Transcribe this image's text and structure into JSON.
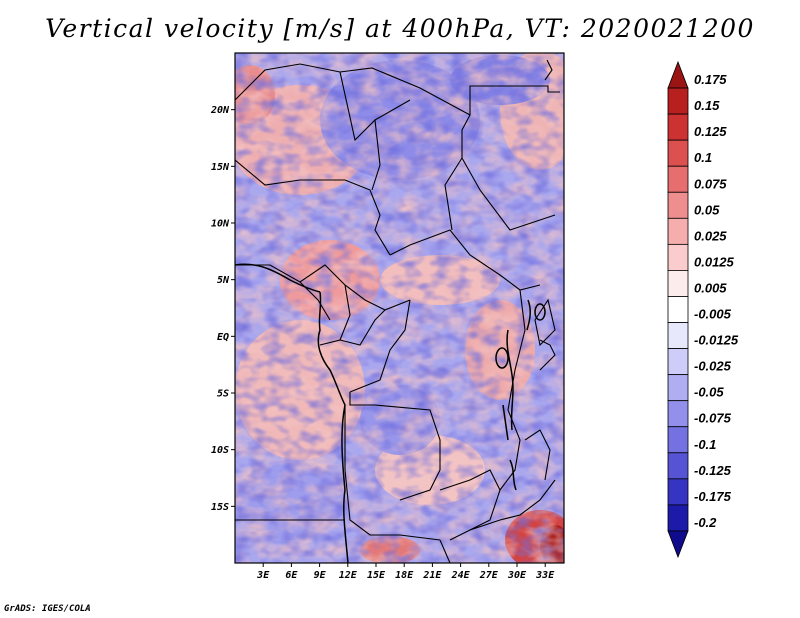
{
  "title": "Vertical velocity [m/s] at 400hPa, VT: 2020021200",
  "credit": "GrADS: IGES/COLA",
  "map": {
    "region": "Central Africa",
    "lat_labels": [
      "20N",
      "15N",
      "10N",
      "5N",
      "EQ",
      "5S",
      "10S",
      "15S"
    ],
    "lat_values": [
      20,
      15,
      10,
      5,
      0,
      -5,
      -10,
      -15
    ],
    "lon_labels": [
      "3E",
      "6E",
      "9E",
      "12E",
      "15E",
      "18E",
      "21E",
      "24E",
      "27E",
      "30E",
      "33E"
    ],
    "lon_values": [
      3,
      6,
      9,
      12,
      15,
      18,
      21,
      24,
      27,
      30,
      33
    ],
    "lon_range": [
      0,
      35
    ],
    "lat_range": [
      -20,
      25
    ]
  },
  "colorbar": {
    "labels": [
      "0.175",
      "0.15",
      "0.125",
      "0.1",
      "0.075",
      "0.05",
      "0.025",
      "0.0125",
      "0.005",
      "-0.005",
      "-0.0125",
      "-0.025",
      "-0.05",
      "-0.075",
      "-0.1",
      "-0.125",
      "-0.175",
      "-0.2"
    ],
    "colors": [
      "#9a1414",
      "#b81f1f",
      "#cc3232",
      "#dc5050",
      "#e76e6e",
      "#ef8e8e",
      "#f5adad",
      "#facccc",
      "#fdecec",
      "#ffffff",
      "#e8e8fc",
      "#ceccf8",
      "#b0aef2",
      "#9290ea",
      "#7472e0",
      "#5654d4",
      "#3634c2",
      "#1c1aa8",
      "#100a8c"
    ]
  }
}
